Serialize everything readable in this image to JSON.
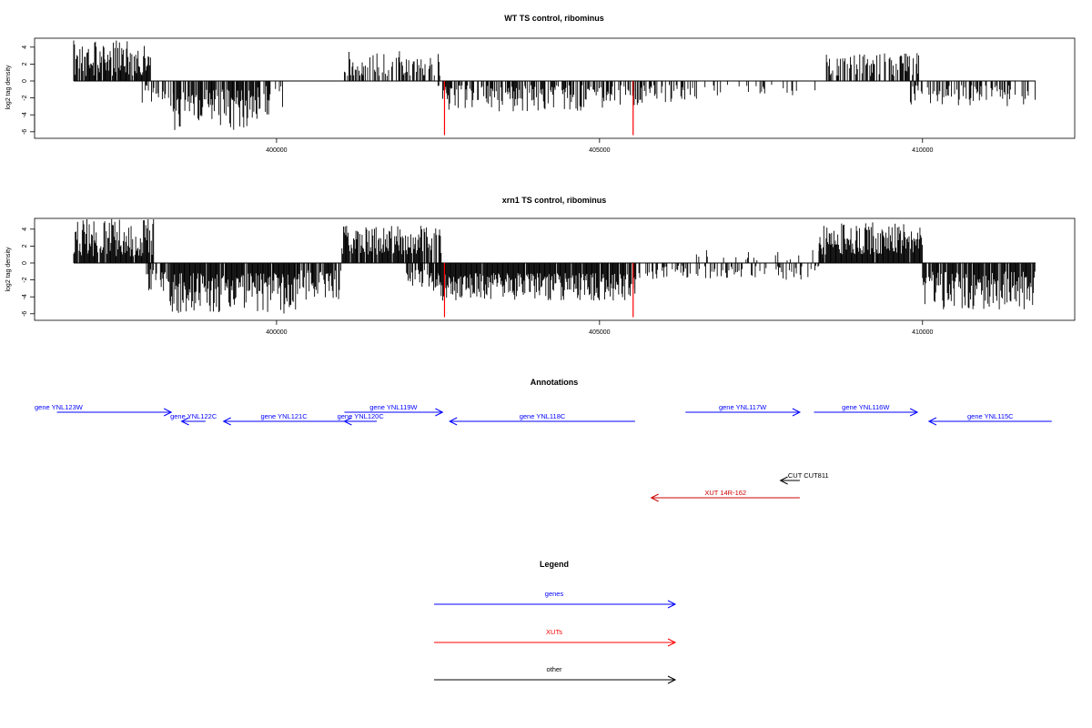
{
  "chart_data": [
    {
      "type": "bar",
      "title": "WT TS control, ribominus",
      "ylabel": "log2 tag density",
      "x_range": [
        396800,
        411900
      ],
      "ylim": [
        -7,
        5.5
      ],
      "y_ticks": [
        -6,
        -4,
        -2,
        0,
        2,
        4
      ],
      "x_ticks": [
        400000,
        405000,
        410000
      ],
      "x_tick_labels": [
        "400000",
        "405000",
        "410000"
      ],
      "y_tick_labels": [
        "-6",
        "-4",
        "-2",
        "0",
        "2",
        "4"
      ],
      "highlight_color": "#ff0000",
      "highlights": [
        {
          "x": 402600,
          "y": -6.4
        },
        {
          "x": 405520,
          "y": -6.4
        }
      ],
      "segments": [
        {
          "from": 396860,
          "to": 398050,
          "sign": 1,
          "max": 4.8,
          "min": 0.6,
          "density": 0.85,
          "seed": 3
        },
        {
          "from": 397920,
          "to": 398400,
          "sign": -1,
          "max": 3.2,
          "min": 0.5,
          "density": 0.35,
          "seed": 5
        },
        {
          "from": 398400,
          "to": 399600,
          "sign": -1,
          "max": 5.8,
          "min": 1.0,
          "density": 0.85,
          "seed": 7
        },
        {
          "from": 399600,
          "to": 400100,
          "sign": -1,
          "max": 4.5,
          "min": 0.6,
          "density": 0.55,
          "seed": 9
        },
        {
          "from": 401050,
          "to": 402550,
          "sign": 1,
          "max": 3.6,
          "min": 0.6,
          "density": 0.55,
          "seed": 11
        },
        {
          "from": 402500,
          "to": 405600,
          "sign": -1,
          "max": 3.6,
          "min": 0.5,
          "density": 0.6,
          "seed": 13
        },
        {
          "from": 405600,
          "to": 406500,
          "sign": -1,
          "max": 2.6,
          "min": 0.4,
          "density": 0.3,
          "seed": 15
        },
        {
          "from": 406500,
          "to": 408500,
          "sign": -1,
          "max": 1.8,
          "min": 0.4,
          "density": 0.15,
          "seed": 17
        },
        {
          "from": 408500,
          "to": 409950,
          "sign": 1,
          "max": 3.5,
          "min": 0.6,
          "density": 0.6,
          "seed": 19
        },
        {
          "from": 409800,
          "to": 411750,
          "sign": -1,
          "max": 3.2,
          "min": 0.5,
          "density": 0.45,
          "seed": 21
        }
      ]
    },
    {
      "type": "bar",
      "title": "xrn1 TS control, ribominus",
      "ylabel": "log2 tag density",
      "x_range": [
        396800,
        411900
      ],
      "ylim": [
        -7,
        5.5
      ],
      "y_ticks": [
        -6,
        -4,
        -2,
        0,
        2,
        4
      ],
      "x_ticks": [
        400000,
        405000,
        410000
      ],
      "x_tick_labels": [
        "400000",
        "405000",
        "410000"
      ],
      "y_tick_labels": [
        "-6",
        "-4",
        "-2",
        "0",
        "2",
        "4"
      ],
      "highlight_color": "#ff0000",
      "highlights": [
        {
          "x": 402600,
          "y": -6.4
        },
        {
          "x": 405520,
          "y": -6.4
        }
      ],
      "segments": [
        {
          "from": 396860,
          "to": 398100,
          "sign": 1,
          "max": 5.2,
          "min": 0.8,
          "density": 0.9,
          "seed": 23
        },
        {
          "from": 397950,
          "to": 398350,
          "sign": -1,
          "max": 3.5,
          "min": 0.6,
          "density": 0.5,
          "seed": 25
        },
        {
          "from": 398350,
          "to": 400300,
          "sign": -1,
          "max": 6.0,
          "min": 1.2,
          "density": 0.95,
          "seed": 27
        },
        {
          "from": 400300,
          "to": 401000,
          "sign": -1,
          "max": 4.5,
          "min": 0.8,
          "density": 0.7,
          "seed": 29
        },
        {
          "from": 401000,
          "to": 402550,
          "sign": 1,
          "max": 4.4,
          "min": 1.0,
          "density": 0.9,
          "seed": 31
        },
        {
          "from": 402000,
          "to": 402500,
          "sign": -1,
          "max": 3.5,
          "min": 0.8,
          "density": 0.7,
          "seed": 33
        },
        {
          "from": 402500,
          "to": 405550,
          "sign": -1,
          "max": 4.5,
          "min": 1.2,
          "density": 0.95,
          "seed": 35
        },
        {
          "from": 405550,
          "to": 408500,
          "sign": -1,
          "max": 2.0,
          "min": 0.3,
          "density": 0.3,
          "seed": 37
        },
        {
          "from": 406500,
          "to": 408500,
          "sign": 1,
          "max": 1.6,
          "min": 0.3,
          "density": 0.12,
          "seed": 39
        },
        {
          "from": 408400,
          "to": 410000,
          "sign": 1,
          "max": 4.8,
          "min": 1.0,
          "density": 0.95,
          "seed": 41
        },
        {
          "from": 410000,
          "to": 411750,
          "sign": -1,
          "max": 5.5,
          "min": 1.0,
          "density": 0.85,
          "seed": 43
        }
      ]
    }
  ],
  "annotations": {
    "title": "Annotations",
    "genes": [
      {
        "label": "gene YNL123W",
        "from": 396600,
        "to": 398370,
        "dir": "right",
        "row": 0,
        "color": "#0000ff"
      },
      {
        "label": "gene YNL122C",
        "from": 398530,
        "to": 398900,
        "dir": "left",
        "row": 1,
        "color": "#0000ff"
      },
      {
        "label": "gene YNL121C",
        "from": 399180,
        "to": 401050,
        "dir": "left",
        "row": 1,
        "color": "#0000ff"
      },
      {
        "label": "gene YNL120C",
        "from": 401050,
        "to": 401550,
        "dir": "left",
        "row": 1,
        "color": "#0000ff"
      },
      {
        "label": "gene YNL119W",
        "from": 401050,
        "to": 402570,
        "dir": "right",
        "row": 0,
        "color": "#0000ff"
      },
      {
        "label": "gene YNL118C",
        "from": 402680,
        "to": 405550,
        "dir": "left",
        "row": 1,
        "color": "#0000ff"
      },
      {
        "label": "gene YNL117W",
        "from": 406330,
        "to": 408100,
        "dir": "right",
        "row": 0,
        "color": "#0000ff"
      },
      {
        "label": "gene YNL116W",
        "from": 408320,
        "to": 409920,
        "dir": "right",
        "row": 0,
        "color": "#0000ff"
      },
      {
        "label": "gene YNL115C",
        "from": 410100,
        "to": 412000,
        "dir": "left",
        "row": 1,
        "color": "#0000ff"
      }
    ],
    "others": [
      {
        "label": "CUT CUT811",
        "from": 407800,
        "to": 408100,
        "dir": "left",
        "row": 2,
        "color": "#000000"
      },
      {
        "label": "XUT 14R-162",
        "from": 405800,
        "to": 408100,
        "dir": "left",
        "row": 3,
        "color": "#cc0000"
      }
    ]
  },
  "legend": {
    "title": "Legend",
    "items": [
      {
        "label": "genes",
        "color": "#0000ff"
      },
      {
        "label": "XUTs",
        "color": "#ff0000"
      },
      {
        "label": "other",
        "color": "#000000"
      }
    ]
  }
}
